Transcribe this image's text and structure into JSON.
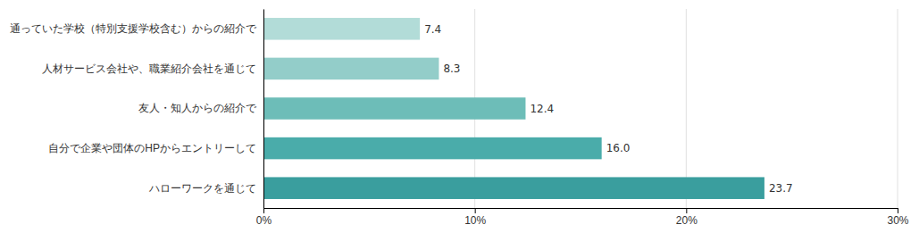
{
  "chart_data": {
    "type": "bar",
    "orientation": "horizontal",
    "categories": [
      "通っていた学校（特別支援学校含む）からの紹介で",
      "人材サービス会社や、職業紹介会社を通じて",
      "友人・知人からの紹介で",
      "自分で企業や団体のHPからエントリーして",
      "ハローワークを通じて"
    ],
    "values": [
      7.4,
      8.3,
      12.4,
      16.0,
      23.7
    ],
    "value_labels": [
      "7.4",
      "8.3",
      "12.4",
      "16.0",
      "23.7"
    ],
    "colors": [
      "#b2dcd8",
      "#93cdc9",
      "#6dbdb8",
      "#4aacaa",
      "#3a9e9e"
    ],
    "xlim": [
      0,
      30
    ],
    "xticks": [
      {
        "value": 0,
        "label": "0%"
      },
      {
        "value": 10,
        "label": "10%"
      },
      {
        "value": 20,
        "label": "20%"
      },
      {
        "value": 30,
        "label": "30%"
      }
    ],
    "grid": true,
    "data_labels": true
  }
}
